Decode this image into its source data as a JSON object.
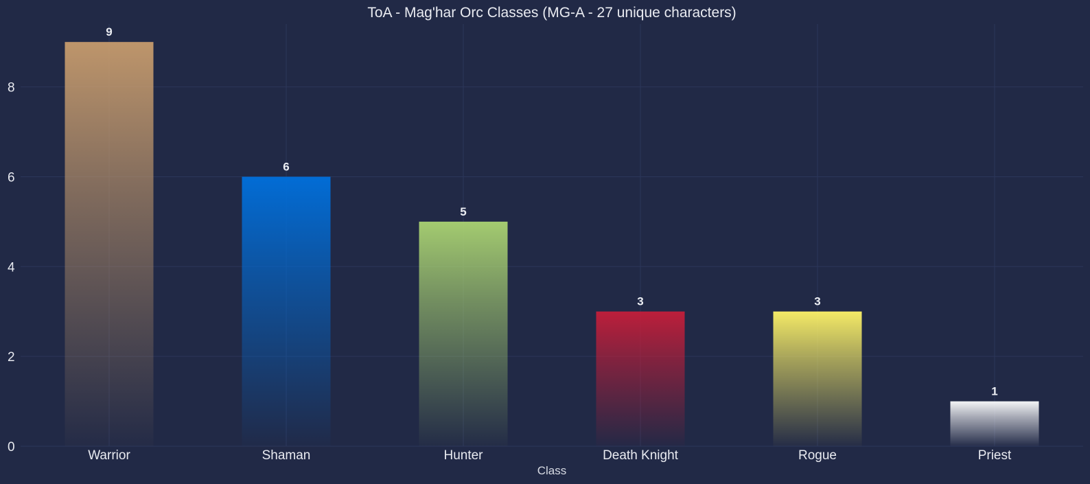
{
  "chart_data": {
    "type": "bar",
    "title": "ToA - Mag'har Orc Classes (MG-A - 27 unique characters)",
    "xlabel": "Class",
    "ylabel": "",
    "categories": [
      "Warrior",
      "Shaman",
      "Hunter",
      "Death Knight",
      "Rogue",
      "Priest"
    ],
    "values": [
      9,
      6,
      5,
      3,
      3,
      1
    ],
    "colors": [
      "#C69B6D",
      "#0070DD",
      "#AAD372",
      "#C41E3A",
      "#FFF468",
      "#FFFFFF"
    ],
    "ylim": [
      0,
      9.4
    ],
    "yticks": [
      0,
      2,
      4,
      6,
      8
    ],
    "grid": true,
    "background": "#212946"
  }
}
